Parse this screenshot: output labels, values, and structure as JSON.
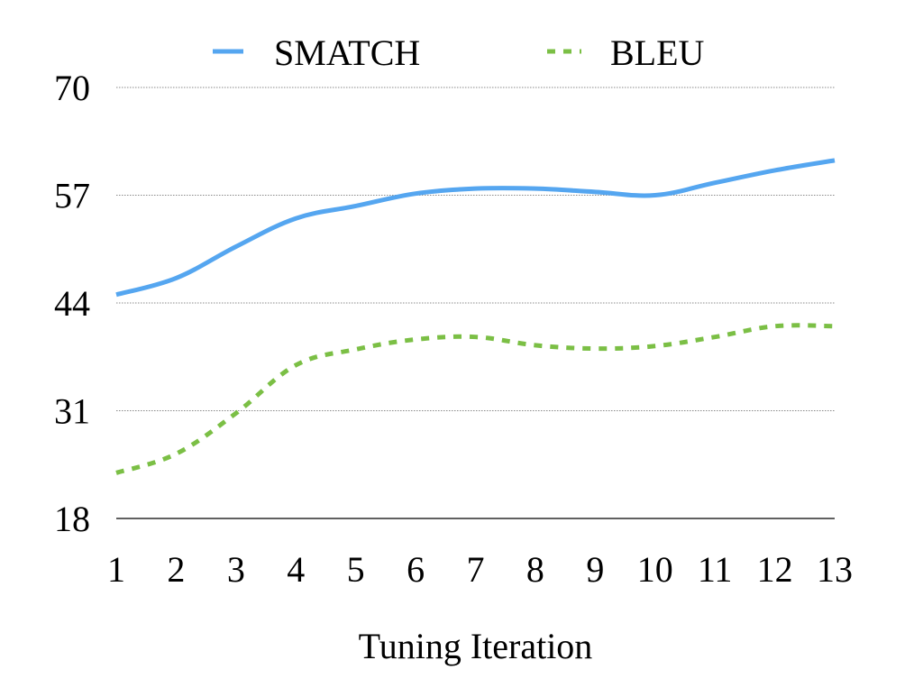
{
  "chart_data": {
    "type": "line",
    "title": "",
    "xlabel": "Tuning Iteration",
    "ylabel": "",
    "x": [
      1,
      2,
      3,
      4,
      5,
      6,
      7,
      8,
      9,
      10,
      11,
      12,
      13
    ],
    "xlim": [
      1,
      13
    ],
    "ylim": [
      18,
      70
    ],
    "yticks": [
      18,
      31,
      44,
      57,
      70
    ],
    "grid": true,
    "grid_style": "dotted",
    "legend_position": "top-center",
    "series": [
      {
        "name": "SMATCH",
        "color": "#55a6f0",
        "style": "solid",
        "values": [
          45.0,
          47.0,
          50.8,
          54.2,
          55.7,
          57.2,
          57.8,
          57.8,
          57.4,
          57.0,
          58.5,
          60.0,
          61.2
        ]
      },
      {
        "name": "BLEU",
        "color": "#7bbf45",
        "style": "dashed",
        "values": [
          23.5,
          25.8,
          30.7,
          36.5,
          38.4,
          39.6,
          39.9,
          38.9,
          38.5,
          38.8,
          39.9,
          41.2,
          41.2
        ]
      }
    ]
  }
}
